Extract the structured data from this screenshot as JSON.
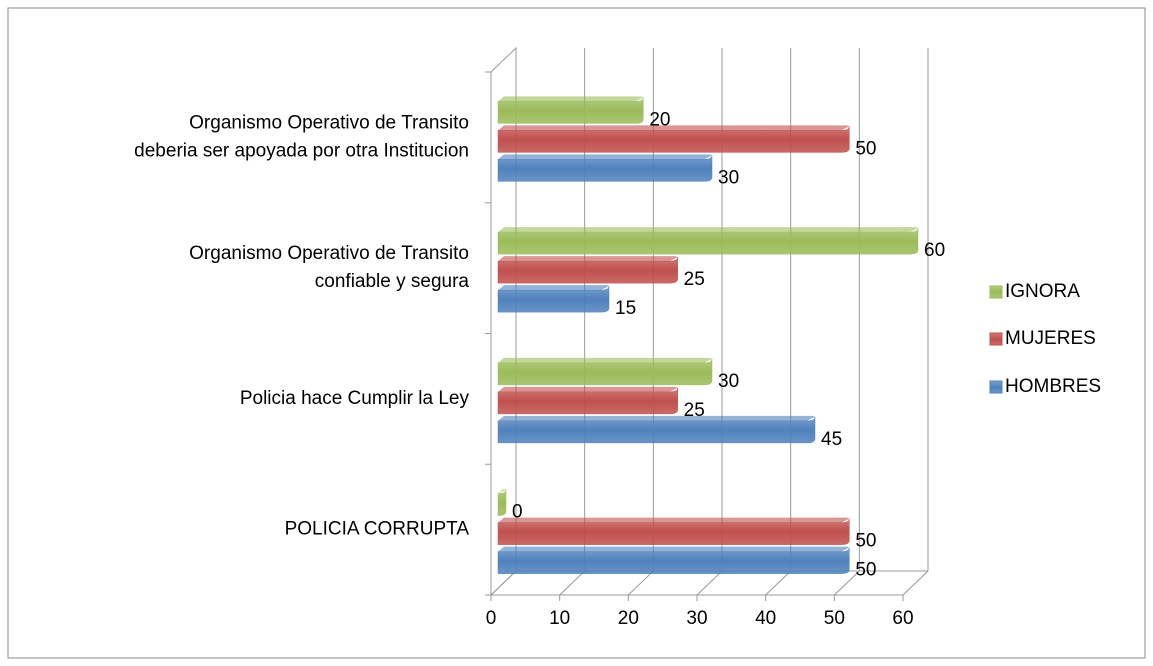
{
  "chart_data": {
    "type": "bar",
    "orientation": "horizontal",
    "categories": [
      "POLICIA CORRUPTA",
      "Policia hace Cumplir la Ley",
      "Organismo Operativo de Transito\nconfiable y segura",
      "Organismo Operativo de Transito\ndeberia ser apoyada por otra Institucion"
    ],
    "series": [
      {
        "name": "HOMBRES",
        "color": "#4f81bd",
        "values": [
          50,
          45,
          15,
          30
        ]
      },
      {
        "name": "MUJERES",
        "color": "#c0504d",
        "values": [
          50,
          25,
          25,
          50
        ]
      },
      {
        "name": "IGNORA",
        "color": "#9bbb59",
        "values": [
          0,
          30,
          60,
          20
        ]
      }
    ],
    "xlim": [
      0,
      60
    ],
    "xticks": [
      0,
      10,
      20,
      30,
      40,
      50,
      60
    ],
    "grid": true,
    "legend": "right"
  }
}
